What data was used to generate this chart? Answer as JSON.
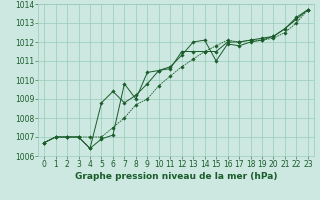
{
  "background_color": "#cce8e0",
  "grid_color": "#99ccbb",
  "line_color": "#1a5c2a",
  "title": "Graphe pression niveau de la mer (hPa)",
  "xlim": [
    -0.5,
    23.5
  ],
  "ylim": [
    1006,
    1014
  ],
  "yticks": [
    1006,
    1007,
    1008,
    1009,
    1010,
    1011,
    1012,
    1013,
    1014
  ],
  "xticks": [
    0,
    1,
    2,
    3,
    4,
    5,
    6,
    7,
    8,
    9,
    10,
    11,
    12,
    13,
    14,
    15,
    16,
    17,
    18,
    19,
    20,
    21,
    22,
    23
  ],
  "line1_x": [
    0,
    1,
    2,
    3,
    4,
    5,
    6,
    7,
    8,
    9,
    10,
    11,
    12,
    13,
    14,
    15,
    16,
    17,
    18,
    19,
    20,
    21,
    22,
    23
  ],
  "line1_y": [
    1006.7,
    1007.0,
    1007.0,
    1007.0,
    1006.4,
    1006.9,
    1007.1,
    1009.8,
    1009.0,
    1010.4,
    1010.5,
    1010.7,
    1011.3,
    1012.0,
    1012.1,
    1011.0,
    1011.9,
    1011.8,
    1012.0,
    1012.1,
    1012.3,
    1012.7,
    1013.2,
    1013.7
  ],
  "line2_x": [
    0,
    1,
    2,
    3,
    4,
    5,
    6,
    7,
    8,
    9,
    10,
    11,
    12,
    13,
    14,
    15,
    16,
    17,
    18,
    19,
    20,
    21,
    22,
    23
  ],
  "line2_y": [
    1006.7,
    1007.0,
    1007.0,
    1007.0,
    1006.4,
    1008.8,
    1009.4,
    1008.8,
    1009.2,
    1009.8,
    1010.5,
    1010.6,
    1011.5,
    1011.5,
    1011.5,
    1011.5,
    1012.0,
    1012.0,
    1012.1,
    1012.2,
    1012.3,
    1012.7,
    1013.3,
    1013.7
  ],
  "line3_x": [
    0,
    1,
    2,
    3,
    4,
    5,
    6,
    7,
    8,
    9,
    10,
    11,
    12,
    13,
    14,
    15,
    16,
    17,
    18,
    19,
    20,
    21,
    22,
    23
  ],
  "line3_y": [
    1006.7,
    1007.0,
    1007.0,
    1007.0,
    1007.0,
    1007.0,
    1007.5,
    1008.0,
    1008.7,
    1009.0,
    1009.7,
    1010.2,
    1010.7,
    1011.1,
    1011.5,
    1011.8,
    1012.1,
    1012.0,
    1012.1,
    1012.1,
    1012.2,
    1012.5,
    1013.0,
    1013.7
  ],
  "title_fontsize": 6.5,
  "tick_fontsize": 5.5
}
